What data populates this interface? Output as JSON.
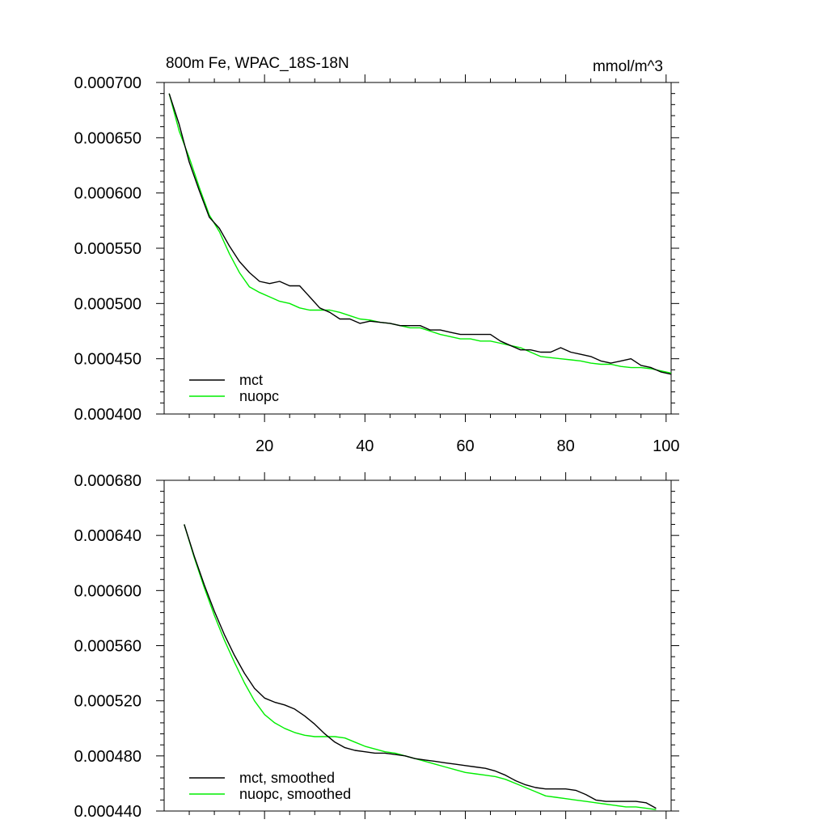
{
  "chart_data": [
    {
      "type": "line",
      "title": "800m Fe, WPAC_18S-18N",
      "units": "mmol/m^3",
      "xlabel": "",
      "ylabel": "",
      "xlim": [
        0,
        101
      ],
      "ylim": [
        0.0004,
        0.0007
      ],
      "x_ticks": [
        20,
        40,
        60,
        80,
        100
      ],
      "x_tick_labels": [
        "20",
        "40",
        "60",
        "80",
        "100"
      ],
      "y_ticks": [
        0.0004,
        0.00045,
        0.0005,
        0.00055,
        0.0006,
        0.00065,
        0.0007
      ],
      "y_tick_labels": [
        "0.000400",
        "0.000450",
        "0.000500",
        "0.000550",
        "0.000600",
        "0.000650",
        "0.000700"
      ],
      "legend_position": "bottom-left",
      "series": [
        {
          "name": "mct",
          "color": "#000000",
          "x": [
            1,
            3,
            5,
            7,
            9,
            11,
            13,
            15,
            17,
            19,
            21,
            23,
            25,
            27,
            29,
            31,
            33,
            35,
            37,
            39,
            41,
            43,
            45,
            47,
            49,
            51,
            53,
            55,
            57,
            59,
            61,
            63,
            65,
            67,
            69,
            71,
            73,
            75,
            77,
            79,
            81,
            83,
            85,
            87,
            89,
            91,
            93,
            95,
            97,
            99,
            101
          ],
          "values": [
            0.00069,
            0.000662,
            0.000628,
            0.000602,
            0.000578,
            0.000568,
            0.000552,
            0.000538,
            0.000528,
            0.00052,
            0.000518,
            0.00052,
            0.000516,
            0.000516,
            0.000506,
            0.000496,
            0.000492,
            0.000486,
            0.000486,
            0.000482,
            0.000484,
            0.000483,
            0.000482,
            0.00048,
            0.00048,
            0.00048,
            0.000476,
            0.000476,
            0.000474,
            0.000472,
            0.000472,
            0.000472,
            0.000472,
            0.000466,
            0.000462,
            0.000458,
            0.000458,
            0.000456,
            0.000456,
            0.00046,
            0.000456,
            0.000454,
            0.000452,
            0.000448,
            0.000446,
            0.000448,
            0.00045,
            0.000444,
            0.000442,
            0.000438,
            0.000436
          ]
        },
        {
          "name": "nuopc",
          "color": "#00ee00",
          "x": [
            1,
            3,
            5,
            7,
            9,
            11,
            13,
            15,
            17,
            19,
            21,
            23,
            25,
            27,
            29,
            31,
            33,
            35,
            37,
            39,
            41,
            43,
            45,
            47,
            49,
            51,
            53,
            55,
            57,
            59,
            61,
            63,
            65,
            67,
            69,
            71,
            73,
            75,
            77,
            79,
            81,
            83,
            85,
            87,
            89,
            91,
            93,
            95,
            97,
            99,
            101
          ],
          "values": [
            0.00069,
            0.000656,
            0.000632,
            0.000605,
            0.00058,
            0.000565,
            0.000545,
            0.000528,
            0.000515,
            0.00051,
            0.000506,
            0.000502,
            0.0005,
            0.000496,
            0.000494,
            0.000494,
            0.000494,
            0.000492,
            0.000489,
            0.000486,
            0.000485,
            0.000483,
            0.000482,
            0.00048,
            0.000478,
            0.000478,
            0.000475,
            0.000472,
            0.00047,
            0.000468,
            0.000468,
            0.000466,
            0.000466,
            0.000464,
            0.000462,
            0.00046,
            0.000456,
            0.000452,
            0.000451,
            0.00045,
            0.000449,
            0.000448,
            0.000446,
            0.000445,
            0.000445,
            0.000443,
            0.000442,
            0.000442,
            0.000441,
            0.000439,
            0.000437
          ]
        }
      ]
    },
    {
      "type": "line",
      "title": "",
      "xlabel": "",
      "ylabel": "",
      "xlim": [
        0,
        101
      ],
      "ylim": [
        0.00044,
        0.00068
      ],
      "x_ticks": [
        20,
        40,
        60,
        80,
        100
      ],
      "x_tick_labels": [],
      "y_ticks": [
        0.00044,
        0.00048,
        0.00052,
        0.00056,
        0.0006,
        0.00064,
        0.00068
      ],
      "y_tick_labels": [
        "0.000440",
        "0.000480",
        "0.000520",
        "0.000560",
        "0.000600",
        "0.000640",
        "0.000680"
      ],
      "legend_position": "bottom-left",
      "series": [
        {
          "name": "mct, smoothed",
          "color": "#000000",
          "x": [
            4,
            6,
            8,
            10,
            12,
            14,
            16,
            18,
            20,
            22,
            24,
            26,
            28,
            30,
            32,
            34,
            36,
            38,
            40,
            42,
            44,
            46,
            48,
            50,
            52,
            54,
            56,
            58,
            60,
            62,
            64,
            66,
            68,
            70,
            72,
            74,
            76,
            78,
            80,
            82,
            84,
            86,
            88,
            90,
            92,
            94,
            96,
            98
          ],
          "values": [
            0.000648,
            0.000625,
            0.000604,
            0.000585,
            0.000568,
            0.000553,
            0.00054,
            0.000529,
            0.000522,
            0.000519,
            0.000517,
            0.000514,
            0.000509,
            0.000503,
            0.000496,
            0.00049,
            0.000486,
            0.000484,
            0.000483,
            0.000482,
            0.000482,
            0.000481,
            0.00048,
            0.000478,
            0.000477,
            0.000476,
            0.000475,
            0.000474,
            0.000473,
            0.000472,
            0.000471,
            0.000469,
            0.000466,
            0.000462,
            0.000459,
            0.000457,
            0.000456,
            0.000456,
            0.000456,
            0.000455,
            0.000452,
            0.000448,
            0.000447,
            0.000447,
            0.000447,
            0.000447,
            0.000446,
            0.000442
          ]
        },
        {
          "name": "nuopc, smoothed",
          "color": "#00ee00",
          "x": [
            4,
            6,
            8,
            10,
            12,
            14,
            16,
            18,
            20,
            22,
            24,
            26,
            28,
            30,
            32,
            34,
            36,
            38,
            40,
            42,
            44,
            46,
            48,
            50,
            52,
            54,
            56,
            58,
            60,
            62,
            64,
            66,
            68,
            70,
            72,
            74,
            76,
            78,
            80,
            82,
            84,
            86,
            88,
            90,
            92,
            94,
            96,
            98
          ],
          "values": [
            0.000648,
            0.000624,
            0.000602,
            0.000582,
            0.000564,
            0.000548,
            0.000533,
            0.00052,
            0.00051,
            0.000504,
            0.0005,
            0.000497,
            0.000495,
            0.000494,
            0.000494,
            0.000494,
            0.000493,
            0.00049,
            0.000487,
            0.000485,
            0.000483,
            0.000482,
            0.00048,
            0.000478,
            0.000476,
            0.000474,
            0.000472,
            0.00047,
            0.000468,
            0.000467,
            0.000466,
            0.000465,
            0.000463,
            0.00046,
            0.000457,
            0.000454,
            0.000451,
            0.00045,
            0.000449,
            0.000448,
            0.000447,
            0.000446,
            0.000445,
            0.000444,
            0.000443,
            0.000443,
            0.000442,
            0.000441
          ]
        }
      ]
    }
  ]
}
